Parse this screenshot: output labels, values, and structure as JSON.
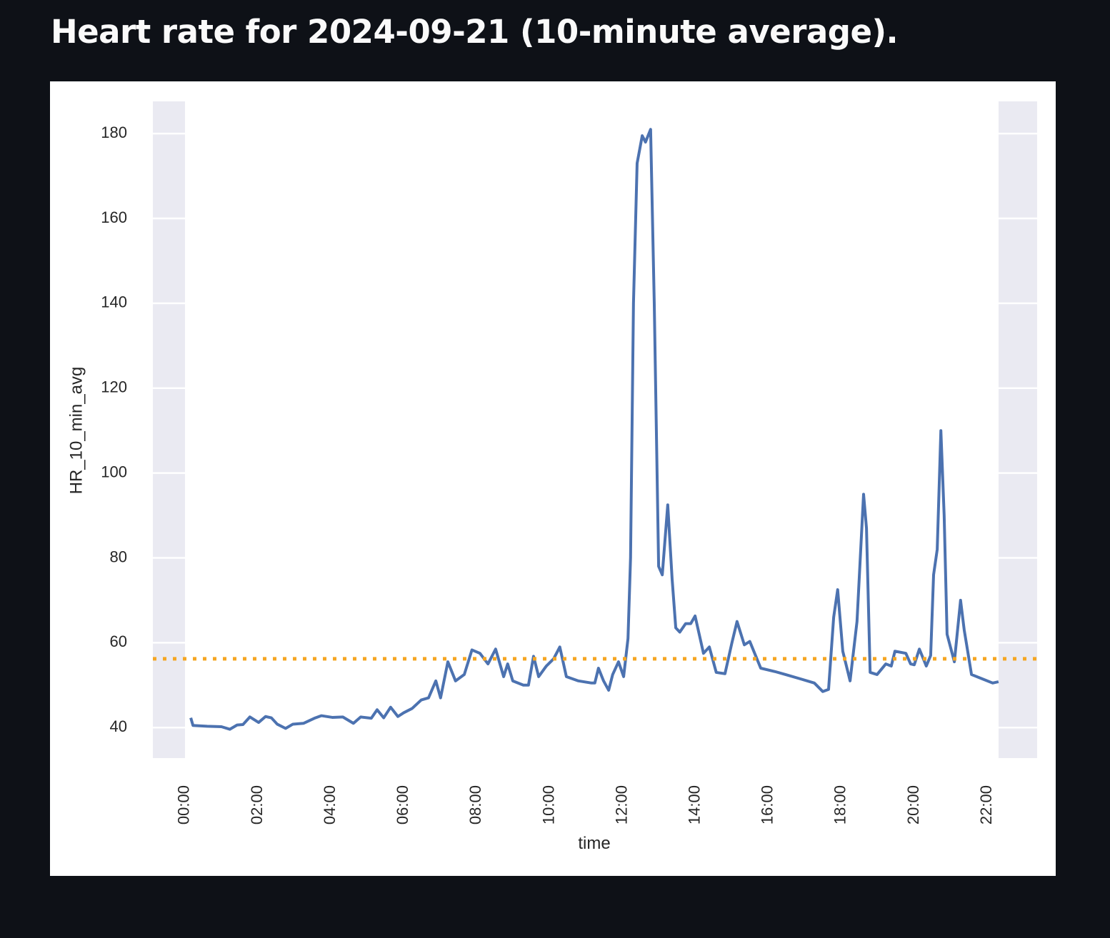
{
  "chart_data": {
    "type": "line",
    "title": "Heart rate for 2024-09-21 (10-minute average).",
    "x_label": "time",
    "y_label": "HR_10_min_avg",
    "x": [
      0.16,
      0.22,
      0.61,
      1.0,
      1.23,
      1.43,
      1.59,
      1.78,
      2.02,
      2.21,
      2.37,
      2.53,
      2.76,
      2.96,
      3.25,
      3.55,
      3.74,
      4.04,
      4.33,
      4.62,
      4.82,
      5.11,
      5.27,
      5.45,
      5.64,
      5.84,
      6.0,
      6.23,
      6.48,
      6.68,
      6.88,
      7.01,
      7.21,
      7.42,
      7.66,
      7.87,
      8.09,
      8.31,
      8.52,
      8.74,
      8.85,
      8.99,
      9.28,
      9.42,
      9.56,
      9.7,
      9.91,
      10.11,
      10.28,
      10.46,
      10.79,
      11.15,
      11.24,
      11.34,
      11.48,
      11.62,
      11.73,
      11.89,
      12.03,
      12.15,
      12.22,
      12.3,
      12.4,
      12.54,
      12.63,
      12.77,
      12.87,
      12.99,
      13.09,
      13.24,
      13.36,
      13.46,
      13.57,
      13.73,
      13.87,
      13.99,
      14.22,
      14.38,
      14.57,
      14.81,
      15.0,
      15.14,
      15.34,
      15.49,
      15.79,
      16.18,
      16.47,
      16.87,
      17.26,
      17.49,
      17.65,
      17.79,
      17.9,
      18.04,
      18.24,
      18.43,
      18.61,
      18.69,
      18.79,
      18.98,
      19.22,
      19.37,
      19.47,
      19.77,
      19.9,
      20.0,
      20.14,
      20.33,
      20.45,
      20.53,
      20.63,
      20.73,
      20.82,
      20.9,
      21.1,
      21.27,
      21.37,
      21.57,
      21.86,
      22.15,
      22.31
    ],
    "series": [
      {
        "name": "HR_10_min_avg",
        "color": "#4c72b0",
        "values": [
          42.3,
          40.5,
          40.3,
          40.2,
          39.6,
          40.6,
          40.7,
          42.5,
          41.2,
          42.6,
          42.3,
          40.8,
          39.8,
          40.8,
          41.0,
          42.2,
          42.8,
          42.4,
          42.5,
          41.0,
          42.5,
          42.2,
          44.2,
          42.3,
          44.8,
          42.6,
          43.5,
          44.5,
          46.5,
          47.0,
          51.0,
          47.0,
          55.5,
          51.0,
          52.5,
          58.3,
          57.5,
          55.0,
          58.5,
          52.0,
          55.0,
          51.0,
          50.0,
          50.0,
          56.8,
          52.0,
          54.5,
          56.2,
          59.0,
          52.0,
          51.0,
          50.5,
          50.5,
          54.0,
          51.0,
          48.8,
          52.5,
          55.5,
          52.0,
          61.0,
          80.0,
          140.0,
          173.0,
          179.5,
          178.0,
          181.0,
          140.0,
          78.0,
          76.0,
          92.5,
          75.0,
          63.5,
          62.5,
          64.5,
          64.5,
          66.3,
          57.5,
          59.0,
          53.0,
          52.7,
          60.0,
          65.0,
          59.5,
          60.3,
          54.0,
          53.2,
          52.5,
          51.5,
          50.5,
          48.5,
          49.0,
          66.0,
          72.5,
          58.0,
          51.0,
          65.0,
          95.0,
          87.0,
          53.0,
          52.5,
          55.0,
          54.5,
          58.0,
          57.5,
          55.0,
          54.8,
          58.5,
          54.5,
          57.0,
          76.0,
          82.0,
          110.0,
          90.0,
          62.0,
          55.5,
          70.0,
          63.0,
          52.5,
          51.5,
          50.5,
          50.8
        ]
      }
    ],
    "reference_line": {
      "value": 56.2,
      "color": "#f5a623"
    },
    "xlim": [
      -0.88,
      23.37
    ],
    "ylim": [
      32.8,
      187.6
    ],
    "xticks": [
      {
        "value": 0,
        "label": "00:00"
      },
      {
        "value": 2,
        "label": "02:00"
      },
      {
        "value": 4,
        "label": "04:00"
      },
      {
        "value": 6,
        "label": "06:00"
      },
      {
        "value": 8,
        "label": "08:00"
      },
      {
        "value": 10,
        "label": "10:00"
      },
      {
        "value": 12,
        "label": "12:00"
      },
      {
        "value": 14,
        "label": "14:00"
      },
      {
        "value": 16,
        "label": "16:00"
      },
      {
        "value": 18,
        "label": "18:00"
      },
      {
        "value": 20,
        "label": "20:00"
      },
      {
        "value": 22,
        "label": "22:00"
      }
    ],
    "yticks": [
      40,
      60,
      80,
      100,
      120,
      140,
      160,
      180
    ],
    "grid": true
  }
}
